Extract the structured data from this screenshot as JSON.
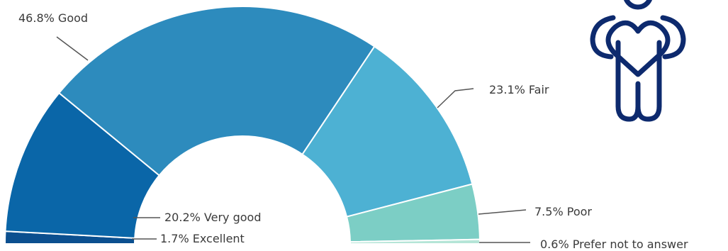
{
  "chart_data": {
    "type": "pie",
    "layout": "half-donut",
    "slices": [
      {
        "label": "Excellent",
        "value": 1.7,
        "text": "1.7% Excellent",
        "color": "#0b4f8f"
      },
      {
        "label": "Very good",
        "value": 20.2,
        "text": "20.2% Very good",
        "color": "#0a66a8"
      },
      {
        "label": "Good",
        "value": 46.8,
        "text": "46.8% Good",
        "color": "#2d8bbd"
      },
      {
        "label": "Fair",
        "value": 23.1,
        "text": "23.1% Fair",
        "color": "#4db1d3"
      },
      {
        "label": "Poor",
        "value": 7.5,
        "text": "7.5% Poor",
        "color": "#7ccec5"
      },
      {
        "label": "Prefer not to answer",
        "value": 0.6,
        "text": "0.6% Prefer not to answer",
        "color": "#b5e5d7"
      }
    ]
  },
  "decoration": {
    "icon": "person-holding-heart-icon",
    "icon_color": "#0d2a6e"
  }
}
